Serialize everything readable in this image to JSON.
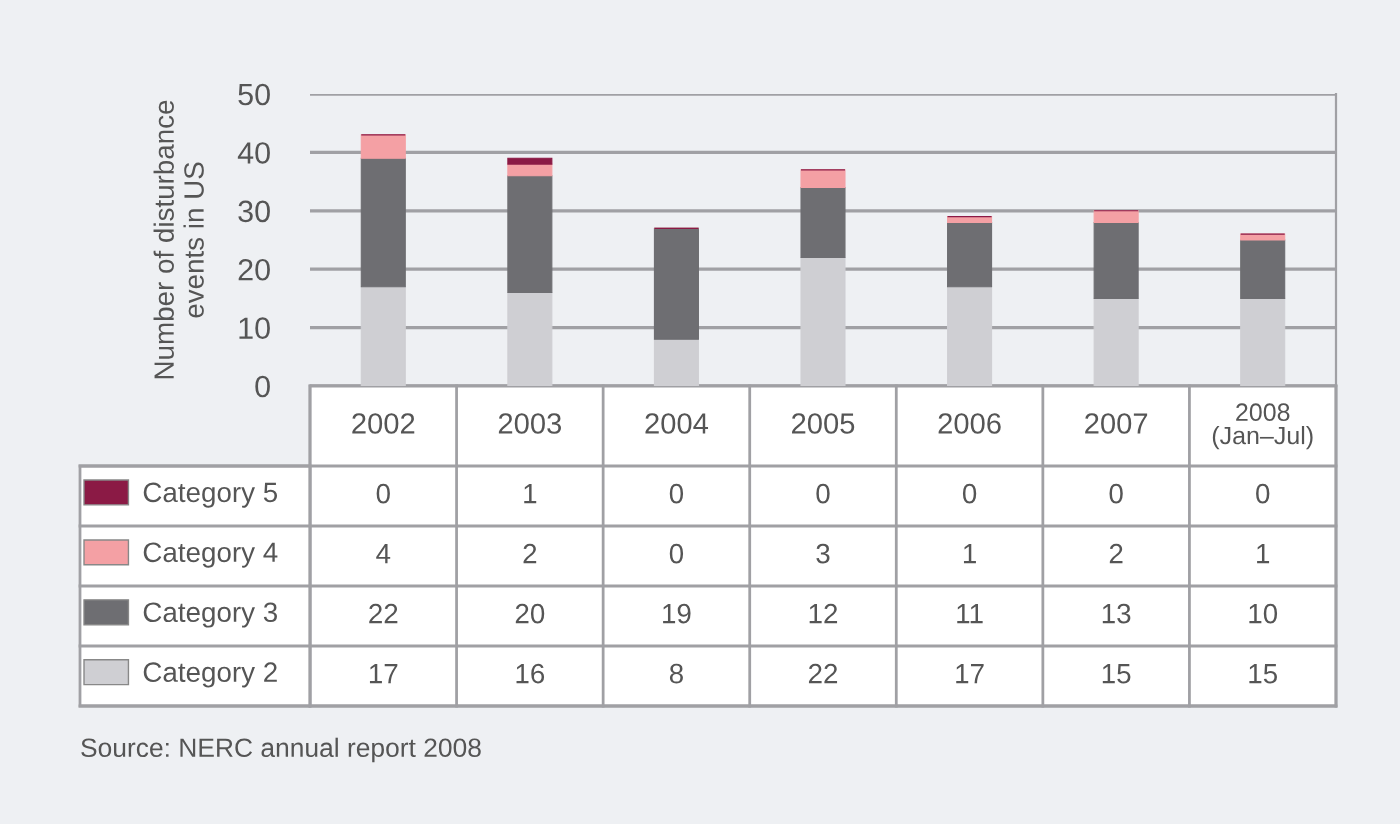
{
  "chart_data": {
    "type": "bar",
    "stacked": true,
    "ylabel": "Number of disturbance\nevents in US",
    "categories": [
      "2002",
      "2003",
      "2004",
      "2005",
      "2006",
      "2007",
      "2008\n(Jan–Jul)"
    ],
    "series": [
      {
        "name": "Category 2",
        "color": "#cfcfd3",
        "values": [
          17,
          16,
          8,
          22,
          17,
          15,
          15
        ]
      },
      {
        "name": "Category 3",
        "color": "#6e6e72",
        "values": [
          22,
          20,
          19,
          12,
          11,
          13,
          10
        ]
      },
      {
        "name": "Category 4",
        "color": "#f4a0a4",
        "values": [
          4,
          2,
          0,
          3,
          1,
          2,
          1
        ]
      },
      {
        "name": "Category 5",
        "color": "#8b1a45",
        "values": [
          0,
          1,
          0,
          0,
          0,
          0,
          0
        ]
      }
    ],
    "ylim": [
      0,
      50
    ],
    "yticks": [
      0,
      10,
      20,
      30,
      40,
      50
    ],
    "grid": "y",
    "legend": "bottom",
    "data_labels": true,
    "annotations": [
      "Source: NERC annual report 2008"
    ]
  }
}
